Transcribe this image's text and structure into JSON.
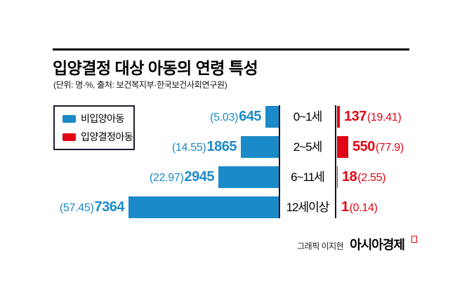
{
  "header": {
    "title": "입양결정 대상 아동의 연령 특성",
    "subtitle": "(단위: 명·%, 출처: 보건복지부·한국보건사회연구원)"
  },
  "legend": {
    "items": [
      {
        "label": "비입양아동",
        "color": "#1b8ac8"
      },
      {
        "label": "입양결정아동",
        "color": "#e00613"
      }
    ]
  },
  "chart_data": {
    "type": "bar",
    "orientation": "horizontal-diverging",
    "title": "입양결정 대상 아동의 연령 특성",
    "unit_note": "단위: 명·%",
    "source": "보건복지부·한국보건사회연구원",
    "categories": [
      "0~1세",
      "2~5세",
      "6~11세",
      "12세이상"
    ],
    "series": [
      {
        "name": "비입양아동",
        "side": "left",
        "color": "#1b8ac8",
        "values": [
          645,
          1865,
          2945,
          7364
        ],
        "percents": [
          5.03,
          14.55,
          22.97,
          57.45
        ]
      },
      {
        "name": "입양결정아동",
        "side": "right",
        "color": "#e00613",
        "values": [
          137,
          550,
          18,
          1
        ],
        "percents": [
          19.41,
          77.9,
          2.55,
          0.14
        ]
      }
    ],
    "legend_position": "top-left",
    "grid": false
  },
  "rows": [
    {
      "age": "0~1세",
      "left_pct": "(5.03)",
      "left_value": "645",
      "right_value": "137",
      "right_pct": "(19.41)"
    },
    {
      "age": "2~5세",
      "left_pct": "(14.55)",
      "left_value": "1865",
      "right_value": "550",
      "right_pct": "(77.9)"
    },
    {
      "age": "6~11세",
      "left_pct": "(22.97)",
      "left_value": "2945",
      "right_value": "18",
      "right_pct": "(2.55)"
    },
    {
      "age": "12세이상",
      "left_pct": "(57.45)",
      "left_value": "7364",
      "right_value": "1",
      "right_pct": "(0.14)"
    }
  ],
  "footer": {
    "credit": "그래픽 이지현",
    "brand": "아시아경제"
  },
  "colors": {
    "blue": "#1b8ac8",
    "red": "#e00613",
    "axis": "#15152c",
    "rule": "#000000"
  }
}
